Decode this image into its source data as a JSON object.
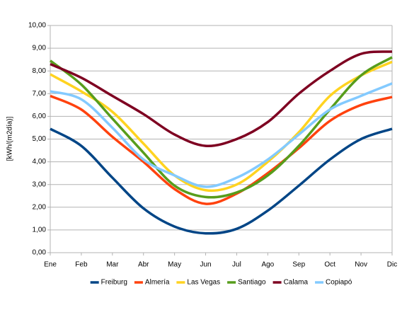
{
  "chart_data": {
    "type": "line",
    "y_label": "[kWh/(m2día)]",
    "categories": [
      "Ene",
      "Feb",
      "Mar",
      "Abr",
      "May",
      "Jun",
      "Jul",
      "Ago",
      "Sep",
      "Oct",
      "Nov",
      "Dic"
    ],
    "ylim": [
      0,
      10
    ],
    "yticks": [
      {
        "value": 0,
        "label": "0,00"
      },
      {
        "value": 1,
        "label": "1,00"
      },
      {
        "value": 2,
        "label": "2,00"
      },
      {
        "value": 3,
        "label": "3,00"
      },
      {
        "value": 4,
        "label": "4,00"
      },
      {
        "value": 5,
        "label": "5,00"
      },
      {
        "value": 6,
        "label": "6,00"
      },
      {
        "value": 7,
        "label": "7,00"
      },
      {
        "value": 8,
        "label": "8,00"
      },
      {
        "value": 9,
        "label": "9,00"
      },
      {
        "value": 10,
        "label": "10,00"
      }
    ],
    "grid": true,
    "legend": "bottom",
    "smooth": true,
    "series": [
      {
        "name": "Freiburg",
        "color": "#004586",
        "values": [
          5.45,
          4.7,
          3.3,
          1.95,
          1.15,
          0.85,
          1.05,
          1.85,
          2.95,
          4.1,
          5.0,
          5.45
        ]
      },
      {
        "name": "Almería",
        "color": "#ff420e",
        "values": [
          6.9,
          6.3,
          5.1,
          4.0,
          2.8,
          2.15,
          2.6,
          3.5,
          4.6,
          5.8,
          6.5,
          6.85
        ]
      },
      {
        "name": "Las Vegas",
        "color": "#ffd320",
        "values": [
          7.85,
          7.1,
          6.2,
          4.8,
          3.4,
          2.75,
          3.0,
          4.0,
          5.3,
          6.9,
          7.8,
          8.4
        ]
      },
      {
        "name": "Santiago",
        "color": "#579d1c",
        "values": [
          8.45,
          7.4,
          5.9,
          4.4,
          2.95,
          2.45,
          2.65,
          3.4,
          4.7,
          6.3,
          7.8,
          8.6
        ]
      },
      {
        "name": "Calama",
        "color": "#7e0021",
        "values": [
          8.3,
          7.7,
          6.9,
          6.1,
          5.2,
          4.7,
          5.0,
          5.75,
          7.0,
          8.0,
          8.75,
          8.85
        ]
      },
      {
        "name": "Copiapó",
        "color": "#83caff",
        "values": [
          7.1,
          6.75,
          5.5,
          4.1,
          3.4,
          2.9,
          3.3,
          4.1,
          5.2,
          6.3,
          6.9,
          7.45
        ]
      }
    ]
  }
}
